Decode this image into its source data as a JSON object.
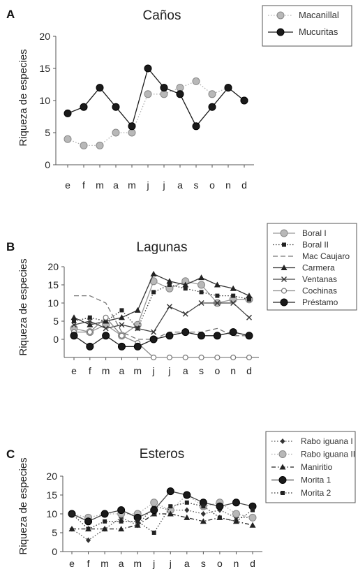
{
  "chart_data": [
    {
      "type": "line",
      "panel": "A",
      "title": "Caños",
      "ylabel": "Riqueza de especies",
      "xlabel": "",
      "categories": [
        "e",
        "f",
        "m",
        "a",
        "m",
        "j",
        "j",
        "a",
        "s",
        "o",
        "n",
        "d"
      ],
      "ylim": [
        0,
        20
      ],
      "yticks": [
        "0",
        "5",
        "10",
        "15",
        "20"
      ],
      "legend_position": "top-right",
      "series": [
        {
          "name": "Macanillal",
          "color": "#b0b0b0",
          "marker": "circle-gray",
          "dash": "dotted",
          "values": [
            4,
            3,
            3,
            5,
            5,
            11,
            11,
            12,
            13,
            11,
            12,
            10
          ]
        },
        {
          "name": "Mucuritas",
          "color": "#1a1a1a",
          "marker": "circle-black",
          "dash": "solid",
          "values": [
            8,
            9,
            12,
            9,
            6,
            15,
            12,
            11,
            6,
            9,
            12,
            10
          ]
        }
      ]
    },
    {
      "type": "line",
      "panel": "B",
      "title": "Lagunas",
      "ylabel": "Riqueza de especies",
      "xlabel": "",
      "categories": [
        "e",
        "f",
        "m",
        "a",
        "m",
        "j",
        "j",
        "a",
        "s",
        "o",
        "n",
        "d"
      ],
      "ylim": [
        -5,
        20
      ],
      "yticks": [
        "0",
        "5",
        "10",
        "15",
        "20"
      ],
      "legend_position": "top-right",
      "series": [
        {
          "name": "Boral I",
          "color": "#999999",
          "marker": "circle-gray",
          "dash": "solid",
          "values": [
            3,
            2,
            4,
            1,
            4,
            16,
            14,
            16,
            15,
            10,
            11,
            11
          ]
        },
        {
          "name": "Boral II",
          "color": "#333333",
          "marker": "square",
          "dash": "dotted",
          "values": [
            5,
            6,
            5,
            8,
            3,
            13,
            15,
            14,
            13,
            12,
            12,
            11
          ]
        },
        {
          "name": "Mac Caujaro",
          "color": "#777777",
          "marker": "none",
          "dash": "dashed",
          "values": [
            12,
            12,
            10,
            2,
            0,
            0,
            2,
            2,
            2,
            3,
            1,
            1
          ]
        },
        {
          "name": "Carmera",
          "color": "#333333",
          "marker": "triangle",
          "dash": "solid",
          "values": [
            6,
            4,
            5,
            6,
            8,
            18,
            16,
            15,
            17,
            15,
            14,
            12
          ]
        },
        {
          "name": "Ventanas",
          "color": "#444444",
          "marker": "x",
          "dash": "solid",
          "values": [
            4,
            5,
            3,
            4,
            3,
            2,
            9,
            7,
            10,
            10,
            10,
            6
          ]
        },
        {
          "name": "Cochinas",
          "color": "#888888",
          "marker": "circle-open",
          "dash": "solid",
          "values": [
            2,
            2,
            6,
            1,
            -1,
            -5,
            -5,
            -5,
            -5,
            -5,
            -5,
            -5
          ]
        },
        {
          "name": "Préstamo",
          "color": "#222222",
          "marker": "circle-black",
          "dash": "solid",
          "values": [
            1,
            -2,
            1,
            -2,
            -2,
            0,
            1,
            2,
            1,
            1,
            2,
            1
          ]
        }
      ]
    },
    {
      "type": "line",
      "panel": "C",
      "title": "Esteros",
      "ylabel": "Riqueza de especies",
      "xlabel": "",
      "categories": [
        "e",
        "f",
        "m",
        "a",
        "m",
        "j",
        "j",
        "a",
        "s",
        "o",
        "n",
        "d"
      ],
      "ylim": [
        0,
        20
      ],
      "yticks": [
        "0",
        "5",
        "10",
        "15",
        "20"
      ],
      "legend_position": "top-right",
      "series": [
        {
          "name": "Rabo iguana I",
          "color": "#555555",
          "marker": "diamond",
          "dash": "dotted",
          "values": [
            6,
            3,
            6,
            9,
            7,
            12,
            11,
            11,
            10,
            11,
            9,
            9
          ]
        },
        {
          "name": "Rabo iguana II",
          "color": "#aaaaaa",
          "marker": "circle-gray",
          "dash": "dotted",
          "values": [
            10,
            9,
            10,
            10,
            10,
            13,
            11,
            15,
            12,
            13,
            10,
            9
          ]
        },
        {
          "name": "Maniritio",
          "color": "#222222",
          "marker": "triangle",
          "dash": "dashdot",
          "values": [
            6,
            6,
            6,
            6,
            7,
            10,
            10,
            9,
            8,
            9,
            8,
            7
          ]
        },
        {
          "name": "Morita 1",
          "color": "#444444",
          "marker": "circle-black",
          "dash": "solid",
          "values": [
            10,
            8,
            10,
            11,
            9,
            11,
            16,
            15,
            13,
            12,
            13,
            12
          ]
        },
        {
          "name": "Morita 2",
          "color": "#333333",
          "marker": "square",
          "dash": "dotted",
          "values": [
            10,
            6,
            8,
            8,
            8,
            5,
            12,
            13,
            12,
            9,
            8,
            11
          ]
        }
      ]
    }
  ]
}
